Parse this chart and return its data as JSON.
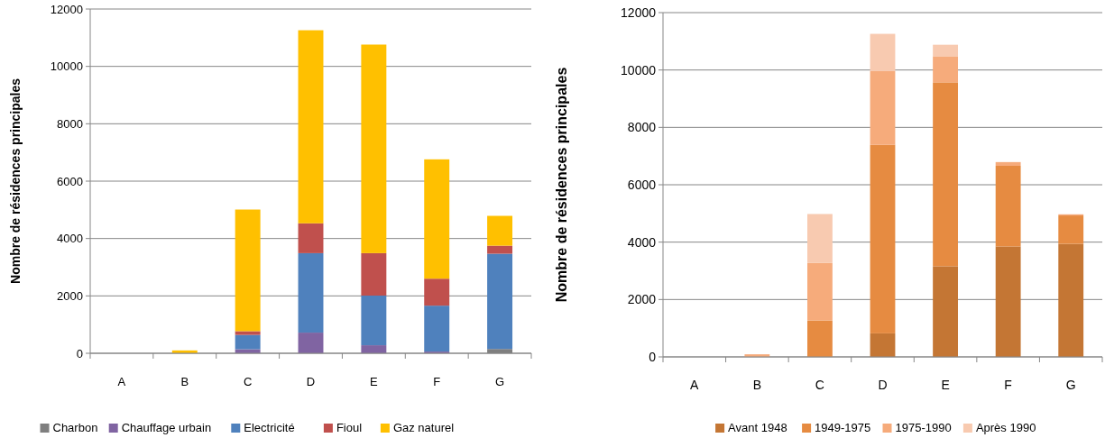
{
  "chart_data": [
    {
      "type": "bar",
      "stacked": true,
      "ylabel": "Nombre de résidences principales",
      "categories": [
        "A",
        "B",
        "C",
        "D",
        "E",
        "F",
        "G"
      ],
      "ylim": [
        0,
        12000
      ],
      "yticks": [
        0,
        2000,
        4000,
        6000,
        8000,
        10000,
        12000
      ],
      "grid": "y",
      "legend": "bottom",
      "series": [
        {
          "name": "Charbon",
          "color": "#7f7f7f",
          "values": [
            0,
            0,
            0,
            0,
            0,
            0,
            150
          ]
        },
        {
          "name": "Chauffage urbain",
          "color": "#8064a2",
          "values": [
            0,
            0,
            140,
            720,
            280,
            60,
            null
          ]
        },
        {
          "name": "Electricité",
          "color": "#4f81bd",
          "values": [
            0,
            0,
            500,
            2770,
            1730,
            1600,
            3320
          ]
        },
        {
          "name": "Fioul",
          "color": "#c0504d",
          "values": [
            0,
            0,
            130,
            1040,
            1480,
            940,
            280
          ]
        },
        {
          "name": "Gaz naturel",
          "color": "#ffc000",
          "values": [
            0,
            100,
            4240,
            6730,
            7270,
            4160,
            1040
          ]
        }
      ]
    },
    {
      "type": "bar",
      "stacked": true,
      "ylabel": "Nombre de résidences principales",
      "categories": [
        "A",
        "B",
        "C",
        "D",
        "E",
        "F",
        "G"
      ],
      "ylim": [
        0,
        12000
      ],
      "yticks": [
        0,
        2000,
        4000,
        6000,
        8000,
        10000,
        12000
      ],
      "grid": "y",
      "legend": "bottom",
      "series": [
        {
          "name": "Avant 1948",
          "color": "#c47634",
          "values": [
            0,
            0,
            null,
            820,
            3160,
            3850,
            3940
          ]
        },
        {
          "name": "1949-1975",
          "color": "#e68b41",
          "values": [
            0,
            0,
            1270,
            6570,
            6410,
            2810,
            990
          ]
        },
        {
          "name": "1975-1990",
          "color": "#f6ab7b",
          "values": [
            0,
            90,
            2010,
            2570,
            910,
            130,
            40
          ]
        },
        {
          "name": "Après 1990",
          "color": "#f8cab0",
          "values": [
            0,
            0,
            1700,
            1300,
            400,
            null,
            0
          ]
        }
      ]
    }
  ]
}
